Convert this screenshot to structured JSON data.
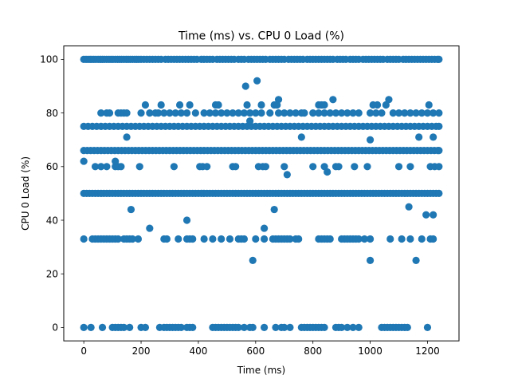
{
  "chart_data": {
    "type": "scatter",
    "title": "Time (ms) vs. CPU 0 Load (%)",
    "xlabel": "Time (ms)",
    "ylabel": "CPU 0 Load (%)",
    "xlim": [
      -70,
      1310
    ],
    "ylim": [
      -5,
      105
    ],
    "xticks": [
      0,
      200,
      400,
      600,
      800,
      1000,
      1200
    ],
    "yticks": [
      0,
      20,
      40,
      60,
      80,
      100
    ],
    "grid": false,
    "marker_color": "#1f77b4",
    "x_range": [
      0,
      1240
    ],
    "levels": [
      {
        "y": 100,
        "x": [
          0,
          8,
          15,
          22,
          28,
          35,
          42,
          50,
          57,
          65,
          72,
          80,
          88,
          95,
          102,
          110,
          118,
          125,
          132,
          140,
          148,
          155,
          162,
          170,
          178,
          185,
          192,
          200,
          210,
          220,
          230,
          240,
          250,
          260,
          270,
          285,
          295,
          305,
          315,
          325,
          335,
          345,
          355,
          365,
          375,
          385,
          395,
          410,
          420,
          430,
          440,
          450,
          465,
          475,
          485,
          495,
          505,
          515,
          525,
          540,
          550,
          560,
          575,
          585,
          595,
          605,
          615,
          625,
          635,
          650,
          660,
          670,
          680,
          690,
          700,
          715,
          725,
          735,
          745,
          755,
          765,
          780,
          790,
          800,
          810,
          820,
          830,
          840,
          850,
          860,
          870,
          885,
          895,
          905,
          915,
          930,
          940,
          950,
          960,
          975,
          985,
          995,
          1005,
          1015,
          1025,
          1035,
          1045,
          1060,
          1070,
          1080,
          1090,
          1100,
          1115,
          1125,
          1135,
          1145,
          1155,
          1165,
          1175,
          1185,
          1195,
          1205,
          1215,
          1225,
          1235,
          1240
        ]
      },
      {
        "y": 85,
        "x": [
          680,
          870,
          1065
        ]
      },
      {
        "y": 83,
        "x": [
          215,
          270,
          335,
          370,
          460,
          470,
          570,
          620,
          665,
          675,
          820,
          830,
          840,
          1010,
          1025,
          1055,
          1205
        ]
      },
      {
        "y": 80,
        "x": [
          60,
          80,
          90,
          120,
          130,
          140,
          150,
          200,
          230,
          250,
          260,
          280,
          300,
          320,
          340,
          360,
          390,
          420,
          440,
          460,
          480,
          500,
          520,
          540,
          560,
          580,
          600,
          620,
          650,
          680,
          700,
          720,
          740,
          760,
          770,
          800,
          820,
          840,
          860,
          880,
          900,
          920,
          940,
          960,
          1000,
          1020,
          1040,
          1080,
          1100,
          1120,
          1140,
          1160,
          1180,
          1200,
          1220,
          1240
        ]
      },
      {
        "y": 75,
        "x": [
          0,
          15,
          30,
          45,
          60,
          75,
          90,
          105,
          120,
          135,
          150,
          165,
          180,
          195,
          210,
          225,
          240,
          255,
          270,
          285,
          300,
          315,
          330,
          345,
          360,
          375,
          390,
          405,
          420,
          435,
          450,
          465,
          480,
          495,
          510,
          525,
          540,
          555,
          570,
          585,
          600,
          615,
          630,
          645,
          660,
          675,
          690,
          705,
          720,
          735,
          750,
          765,
          780,
          795,
          810,
          825,
          840,
          855,
          870,
          885,
          900,
          915,
          930,
          945,
          960,
          975,
          990,
          1005,
          1020,
          1035,
          1050,
          1065,
          1080,
          1095,
          1110,
          1125,
          1140,
          1155,
          1170,
          1185,
          1200,
          1215,
          1230,
          1240
        ]
      },
      {
        "y": 66,
        "x": [
          0,
          12,
          24,
          36,
          48,
          60,
          72,
          84,
          96,
          108,
          120,
          132,
          144,
          156,
          168,
          180,
          192,
          204,
          216,
          228,
          240,
          252,
          264,
          276,
          288,
          300,
          312,
          324,
          336,
          348,
          360,
          372,
          384,
          396,
          408,
          420,
          432,
          444,
          456,
          468,
          480,
          492,
          504,
          516,
          528,
          540,
          552,
          564,
          576,
          588,
          600,
          612,
          624,
          636,
          648,
          660,
          672,
          684,
          696,
          708,
          720,
          732,
          744,
          756,
          768,
          780,
          792,
          804,
          816,
          828,
          840,
          852,
          864,
          876,
          888,
          900,
          912,
          924,
          936,
          948,
          960,
          972,
          984,
          996,
          1008,
          1020,
          1032,
          1044,
          1056,
          1068,
          1080,
          1092,
          1104,
          1116,
          1128,
          1140,
          1152,
          1164,
          1176,
          1188,
          1200,
          1212,
          1224,
          1236,
          1240
        ]
      },
      {
        "y": 60,
        "x": [
          40,
          60,
          80,
          110,
          120,
          130,
          195,
          315,
          405,
          415,
          430,
          520,
          610,
          625,
          635,
          700,
          800,
          840,
          880,
          890,
          945,
          990,
          1100,
          1140,
          1210,
          1225,
          1240
        ]
      },
      {
        "y": 50,
        "x": [
          0,
          10,
          20,
          30,
          40,
          50,
          60,
          70,
          80,
          90,
          100,
          110,
          120,
          130,
          140,
          150,
          160,
          170,
          180,
          190,
          200,
          210,
          220,
          230,
          240,
          250,
          260,
          270,
          280,
          290,
          300,
          310,
          320,
          330,
          340,
          350,
          360,
          370,
          380,
          390,
          400,
          410,
          420,
          430,
          440,
          450,
          460,
          470,
          480,
          490,
          500,
          510,
          520,
          530,
          540,
          550,
          560,
          570,
          580,
          590,
          600,
          610,
          620,
          630,
          640,
          650,
          660,
          670,
          680,
          690,
          700,
          710,
          720,
          730,
          740,
          750,
          760,
          770,
          780,
          790,
          800,
          810,
          820,
          830,
          840,
          850,
          860,
          870,
          880,
          890,
          900,
          910,
          920,
          930,
          940,
          950,
          960,
          970,
          980,
          990,
          1000,
          1010,
          1020,
          1030,
          1040,
          1050,
          1060,
          1070,
          1080,
          1090,
          1100,
          1110,
          1120,
          1130,
          1140,
          1150,
          1160,
          1170,
          1180,
          1190,
          1200,
          1210,
          1220,
          1230,
          1240
        ]
      },
      {
        "y": 33,
        "x": [
          0,
          30,
          40,
          50,
          60,
          70,
          80,
          90,
          100,
          110,
          120,
          140,
          150,
          160,
          170,
          190,
          280,
          290,
          330,
          360,
          370,
          380,
          420,
          450,
          480,
          510,
          540,
          550,
          560,
          600,
          630,
          660,
          670,
          680,
          690,
          700,
          710,
          720,
          740,
          750,
          820,
          830,
          840,
          850,
          860,
          900,
          910,
          920,
          930,
          940,
          950,
          960,
          980,
          1000,
          1070,
          1110,
          1140,
          1180,
          1210,
          1220
        ]
      },
      {
        "y": 0,
        "x": [
          0,
          25,
          65,
          100,
          110,
          120,
          130,
          140,
          160,
          200,
          215,
          265,
          280,
          290,
          300,
          310,
          320,
          330,
          340,
          360,
          370,
          380,
          450,
          460,
          470,
          480,
          490,
          500,
          510,
          520,
          530,
          540,
          560,
          580,
          590,
          630,
          670,
          690,
          700,
          720,
          760,
          770,
          780,
          790,
          800,
          810,
          820,
          830,
          840,
          880,
          890,
          900,
          920,
          940,
          960,
          1040,
          1050,
          1060,
          1070,
          1080,
          1090,
          1100,
          1110,
          1120,
          1130,
          1200
        ]
      }
    ],
    "points": [
      {
        "x": 0,
        "y": 62
      },
      {
        "x": 110,
        "y": 62
      },
      {
        "x": 150,
        "y": 71
      },
      {
        "x": 760,
        "y": 71
      },
      {
        "x": 1000,
        "y": 70
      },
      {
        "x": 1170,
        "y": 71
      },
      {
        "x": 1220,
        "y": 71
      },
      {
        "x": 565,
        "y": 90
      },
      {
        "x": 605,
        "y": 92
      },
      {
        "x": 580,
        "y": 77
      },
      {
        "x": 710,
        "y": 57
      },
      {
        "x": 850,
        "y": 58
      },
      {
        "x": 530,
        "y": 60
      },
      {
        "x": 165,
        "y": 44
      },
      {
        "x": 665,
        "y": 44
      },
      {
        "x": 360,
        "y": 40
      },
      {
        "x": 1135,
        "y": 45
      },
      {
        "x": 1195,
        "y": 42
      },
      {
        "x": 1220,
        "y": 42
      },
      {
        "x": 230,
        "y": 37
      },
      {
        "x": 630,
        "y": 37
      },
      {
        "x": 590,
        "y": 25
      },
      {
        "x": 1000,
        "y": 25
      },
      {
        "x": 1160,
        "y": 25
      }
    ]
  }
}
